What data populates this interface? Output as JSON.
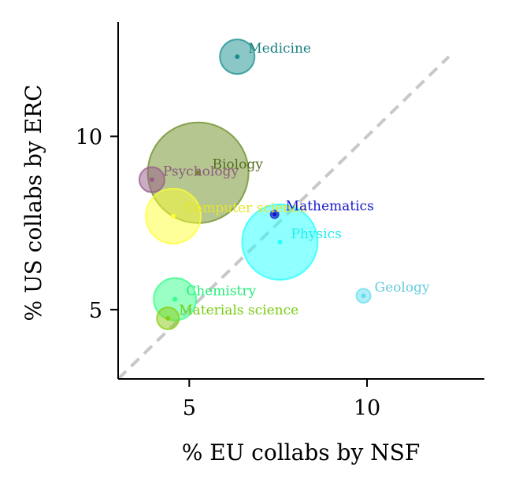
{
  "chart_data": {
    "type": "scatter",
    "title": "",
    "xlabel": "% EU collabs by NSF",
    "ylabel": "% US collabs by ERC",
    "xlim": [
      3.0,
      13.3
    ],
    "ylim": [
      3.0,
      13.3
    ],
    "xticks": [
      "5",
      "10"
    ],
    "yticks": [
      "5",
      "10"
    ],
    "grid": false,
    "legend": "none",
    "reference_line": "identity diagonal (y = x), dashed gray",
    "points": [
      {
        "label": "Medicine",
        "x": 6.35,
        "y": 12.3,
        "size": 22,
        "color": "#1a8f8f",
        "label_color": "#1a7f7f"
      },
      {
        "label": "Biology",
        "x": 5.25,
        "y": 8.95,
        "size": 64,
        "color": "#6b8e23",
        "label_color": "#556b1f"
      },
      {
        "label": "Psychology",
        "x": 3.95,
        "y": 8.75,
        "size": 16,
        "color": "#9a5a8a",
        "label_color": "#8b5a7d"
      },
      {
        "label": "Computer science",
        "x": 4.55,
        "y": 7.7,
        "size": 35,
        "color": "#ffff33",
        "label_color": "#e5e52a"
      },
      {
        "label": "Mathematics",
        "x": 7.4,
        "y": 7.75,
        "size": 5,
        "color": "#1515cc",
        "label_color": "#1a1acc"
      },
      {
        "label": "Physics",
        "x": 7.55,
        "y": 6.95,
        "size": 48,
        "color": "#22ffff",
        "label_color": "#22eeee"
      },
      {
        "label": "Geology",
        "x": 9.9,
        "y": 5.4,
        "size": 9,
        "color": "#66ddee",
        "label_color": "#66ccdd"
      },
      {
        "label": "Chemistry",
        "x": 4.6,
        "y": 5.3,
        "size": 27,
        "color": "#33ff88",
        "label_color": "#22ee77"
      },
      {
        "label": "Materials science",
        "x": 4.4,
        "y": 4.75,
        "size": 14,
        "color": "#88cc11",
        "label_color": "#77cc11"
      }
    ]
  }
}
